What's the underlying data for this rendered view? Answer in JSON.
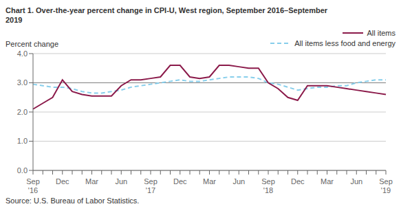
{
  "chart_data": {
    "type": "line",
    "title": "Chart 1. Over-the-year percent change in CPI-U, West region, September 2016–September\n2019",
    "ylabel": "Percent change",
    "source": "Source: U.S. Bureau of Labor Statistics.",
    "categories": [
      "Sep\n'16",
      null,
      null,
      "Dec",
      null,
      null,
      "Mar",
      null,
      null,
      "Jun",
      null,
      null,
      "Sep\n'17",
      null,
      null,
      "Dec",
      null,
      null,
      "Mar",
      null,
      null,
      "Jun",
      null,
      null,
      "Sep\n'18",
      null,
      null,
      "Dec",
      null,
      null,
      "Mar",
      null,
      null,
      "Jun",
      null,
      null,
      "Sep\n'19"
    ],
    "series": [
      {
        "name": "All items",
        "color": "#8B1A4A",
        "line_style": "solid",
        "values": [
          2.1,
          2.3,
          2.5,
          3.1,
          2.7,
          2.6,
          2.55,
          2.55,
          2.55,
          2.9,
          3.1,
          3.1,
          3.15,
          3.2,
          3.6,
          3.6,
          3.2,
          3.15,
          3.2,
          3.6,
          3.6,
          3.55,
          3.5,
          3.5,
          3.0,
          2.8,
          2.5,
          2.4,
          2.9,
          2.9,
          2.9,
          2.85,
          2.8,
          2.75,
          2.7,
          2.65,
          2.6
        ]
      },
      {
        "name": "All items less food and energy",
        "color": "#87CEEB",
        "line_style": "dashed",
        "values": [
          2.95,
          2.9,
          2.85,
          2.85,
          2.8,
          2.7,
          2.65,
          2.65,
          2.7,
          2.75,
          2.85,
          2.9,
          2.95,
          3.0,
          3.05,
          3.1,
          3.05,
          3.05,
          3.1,
          3.15,
          3.2,
          3.2,
          3.2,
          3.15,
          3.0,
          2.95,
          2.85,
          2.75,
          2.8,
          2.85,
          2.85,
          2.9,
          2.9,
          3.0,
          3.05,
          3.1,
          3.1
        ]
      }
    ],
    "reference_lines": [
      {
        "value": 3.0,
        "color": "#808080"
      }
    ],
    "ylim": [
      0.0,
      4.0
    ],
    "yticks": [
      {
        "value": 0.0,
        "label": "0.0"
      },
      {
        "value": 1.0,
        "label": "1.0"
      },
      {
        "value": 2.0,
        "label": "2.0"
      },
      {
        "value": 3.0,
        "label": "3.0"
      },
      {
        "value": 4.0,
        "label": "4.0"
      }
    ],
    "grid": true,
    "legend": "upper right"
  }
}
